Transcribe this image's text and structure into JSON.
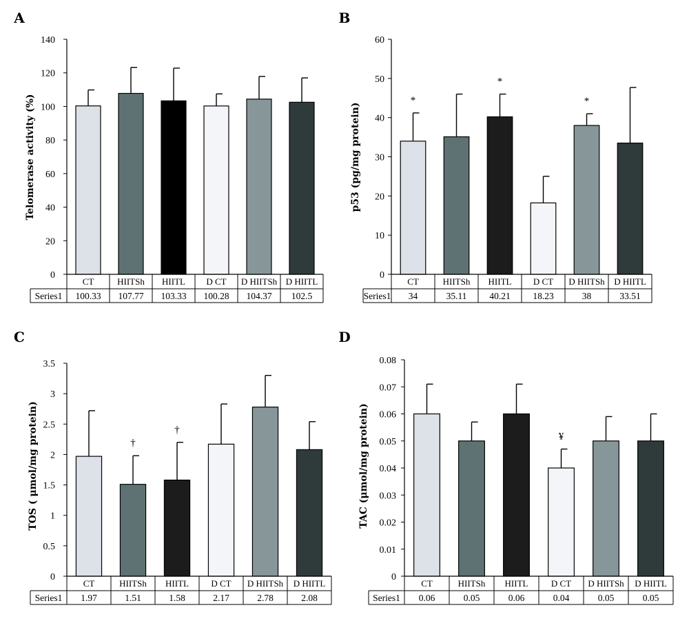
{
  "chart_data": [
    {
      "panel": "A",
      "type": "bar",
      "ylabel": "Telomerase activity (%)",
      "categories": [
        "CT",
        "HIITSh",
        "HIITL",
        "D CT",
        "D HIITSh",
        "D HIITL"
      ],
      "series": [
        {
          "name": "Series1",
          "values": [
            100.33,
            107.77,
            103.33,
            100.28,
            104.37,
            102.5
          ]
        }
      ],
      "errors": [
        9.5,
        15.5,
        19.5,
        7.2,
        13.5,
        14.5
      ],
      "table_values": [
        "100.33",
        "107.77",
        "103.33",
        "100.28",
        "104.37",
        "102.5"
      ],
      "annotations": [
        "",
        "",
        "",
        "",
        "",
        ""
      ],
      "ylim": [
        0,
        140
      ],
      "yticks": [
        "0",
        "20",
        "40",
        "60",
        "80",
        "100",
        "120",
        "140"
      ],
      "colors": [
        "#dde1e8",
        "#5f7273",
        "#000000",
        "#f3f5f8",
        "#879799",
        "#2f3b3b"
      ]
    },
    {
      "panel": "B",
      "type": "bar",
      "ylabel": "p53  (pg/mg protein)",
      "categories": [
        "CT",
        "HIITSh",
        "HIITL",
        "D CT",
        "D HIITSh",
        "D HIITL"
      ],
      "series": [
        {
          "name": "Series1",
          "values": [
            34,
            35.11,
            40.21,
            18.23,
            38,
            33.51
          ]
        }
      ],
      "errors": [
        7.2,
        10.9,
        5.8,
        6.8,
        3.0,
        14.2
      ],
      "table_values": [
        "34",
        "35.11",
        "40.21",
        "18.23",
        "38",
        "33.51"
      ],
      "annotations": [
        "*",
        "",
        "*",
        "",
        "*",
        ""
      ],
      "ylim": [
        0,
        60
      ],
      "yticks": [
        "0",
        "10",
        "20",
        "30",
        "40",
        "50",
        "60"
      ],
      "colors": [
        "#dde1e8",
        "#5f7273",
        "#1c1c1c",
        "#f3f5f8",
        "#879799",
        "#2f3b3b"
      ]
    },
    {
      "panel": "C",
      "type": "bar",
      "ylabel": "TOS ( μmol/mg protein)",
      "categories": [
        "CT",
        "HIITSh",
        "HIITL",
        "D CT",
        "D HIITSh",
        "D HIITL"
      ],
      "series": [
        {
          "name": "Series1",
          "values": [
            1.97,
            1.51,
            1.58,
            2.17,
            2.78,
            2.08
          ]
        }
      ],
      "errors": [
        0.75,
        0.47,
        0.62,
        0.66,
        0.52,
        0.46
      ],
      "table_values": [
        "1.97",
        "1.51",
        "1.58",
        "2.17",
        "2.78",
        "2.08"
      ],
      "annotations": [
        "",
        "†",
        "†",
        "",
        "",
        ""
      ],
      "ylim": [
        0,
        3.5
      ],
      "yticks": [
        "0",
        "0.5",
        "1",
        "1.5",
        "2",
        "2.5",
        "3",
        "3.5"
      ],
      "colors": [
        "#dde1e8",
        "#5f7273",
        "#1c1c1c",
        "#f3f5f8",
        "#879799",
        "#2f3b3b"
      ]
    },
    {
      "panel": "D",
      "type": "bar",
      "ylabel": "TAC (μmol/mg protein)",
      "categories": [
        "CT",
        "HIITSh",
        "HIITL",
        "D CT",
        "D HIITSh",
        "D HIITL"
      ],
      "series": [
        {
          "name": "Series1",
          "values": [
            0.06,
            0.05,
            0.06,
            0.04,
            0.05,
            0.05
          ]
        }
      ],
      "errors": [
        0.011,
        0.007,
        0.011,
        0.007,
        0.009,
        0.01
      ],
      "table_values": [
        "0.06",
        "0.05",
        "0.06",
        "0.04",
        "0.05",
        "0.05"
      ],
      "annotations": [
        "",
        "",
        "",
        "¥",
        "",
        ""
      ],
      "ylim": [
        0,
        0.08
      ],
      "yticks": [
        "0",
        "0.01",
        "0.02",
        "0.03",
        "0.04",
        "0.05",
        "0.06",
        "0.07",
        "0.08"
      ],
      "colors": [
        "#dde1e8",
        "#5f7273",
        "#1c1c1c",
        "#f3f5f8",
        "#879799",
        "#2f3b3b"
      ]
    }
  ]
}
